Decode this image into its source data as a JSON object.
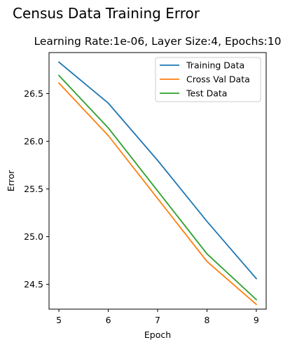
{
  "chart_data": {
    "type": "line",
    "suptitle": "Census Data Training Error",
    "title": "Learning Rate:1e-06, Layer Size:4, Epochs:10",
    "xlabel": "Epoch",
    "ylabel": "Error",
    "x": [
      5,
      6,
      7,
      8,
      9
    ],
    "xticks": [
      "5",
      "6",
      "7",
      "8",
      "9"
    ],
    "yticks": [
      "24.5",
      "25.0",
      "25.5",
      "26.0",
      "26.5"
    ],
    "xlim": [
      4.8,
      9.2
    ],
    "ylim": [
      24.24,
      26.93
    ],
    "grid": false,
    "legend_position": "upper-right",
    "series": [
      {
        "name": "Training Data",
        "color": "#1f77b4",
        "values": [
          26.83,
          26.4,
          25.8,
          25.16,
          24.56
        ]
      },
      {
        "name": "Cross Val Data",
        "color": "#ff7f0e",
        "values": [
          26.61,
          26.06,
          25.4,
          24.74,
          24.29
        ]
      },
      {
        "name": "Test Data",
        "color": "#2ca02c",
        "values": [
          26.69,
          26.14,
          25.48,
          24.82,
          24.34
        ]
      }
    ]
  }
}
